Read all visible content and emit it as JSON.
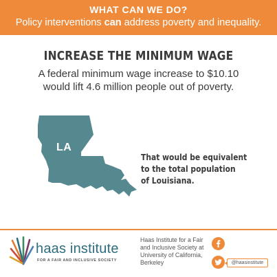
{
  "banner": {
    "kicker": "WHAT CAN WE DO?",
    "sub_before": "Policy interventions ",
    "sub_emphasis": "can",
    "sub_after": " address poverty and inequality."
  },
  "headline": "INCREASE THE MINIMUM WAGE",
  "subhead": {
    "line1": "A federal minimum wage increase to $10.10",
    "line2": "would lift 4.6 million people out of poverty."
  },
  "map": {
    "state_abbr": "LA",
    "icon": "louisiana-state-shape-icon",
    "fill_color": "#55898f"
  },
  "fact": {
    "line1": "That would be equivalent",
    "line2": "to the total population",
    "line3": "of Louisiana."
  },
  "footer": {
    "logo_name": "haas institute",
    "logo_tagline": "FOR A FAIR AND INCLUSIVE SOCIETY",
    "org_line1": "Haas Institute for a Fair",
    "org_line2": "and Inclusive Society at",
    "org_line3": "University of California,",
    "org_line4": "Berkeley",
    "facebook_glyph": "f",
    "twitter_handle": "@haasinstitute"
  },
  "colors": {
    "accent": "#ee8a39",
    "map": "#55898f",
    "text": "#3a3a3a"
  }
}
